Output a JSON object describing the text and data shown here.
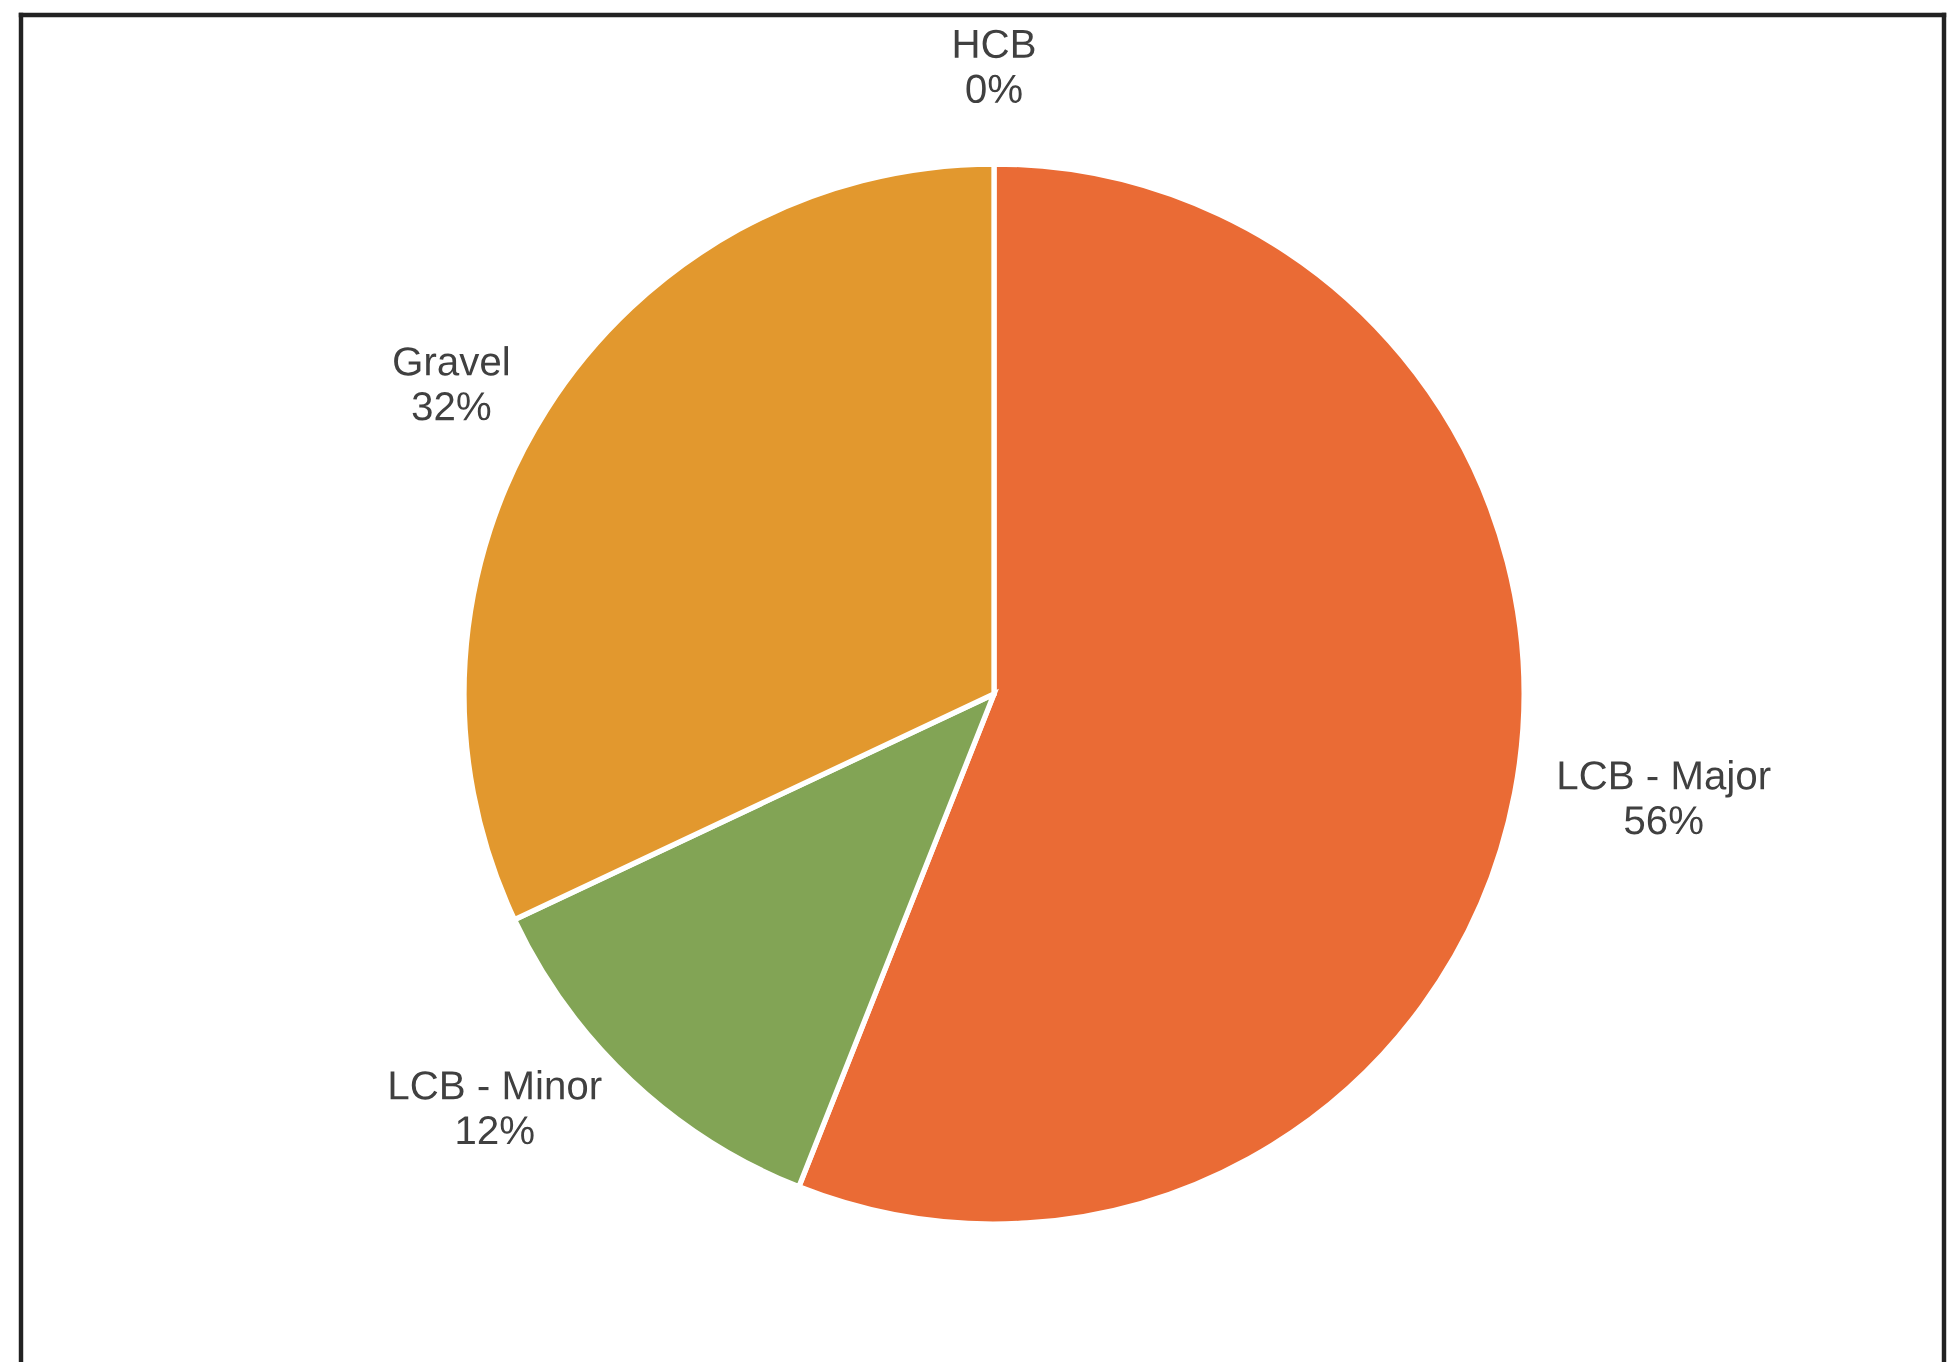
{
  "chart_data": {
    "type": "pie",
    "categories": [
      "HCB",
      "LCB - Major",
      "LCB - Minor",
      "Gravel"
    ],
    "values": [
      0,
      56,
      12,
      32
    ],
    "colors": [
      null,
      "#ea6b35",
      "#82a455",
      "#e2982e"
    ],
    "value_labels": [
      "0%",
      "56%",
      "12%",
      "32%"
    ]
  }
}
